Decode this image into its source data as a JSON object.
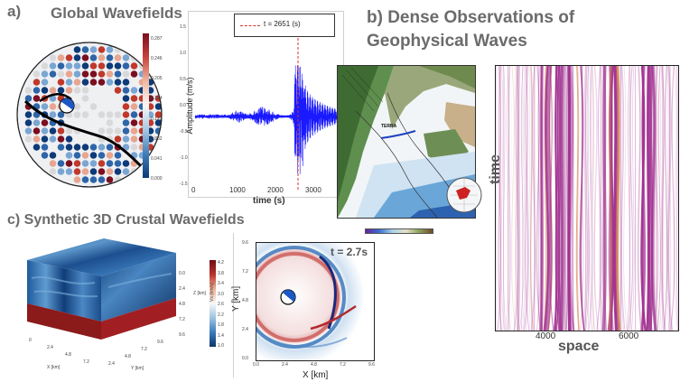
{
  "panels": {
    "a": {
      "label": "a)",
      "title": "Global Wavefields",
      "colorbar_ticks": [
        "0.000",
        "0.041",
        "0.082",
        "0.123",
        "0.164",
        "0.205",
        "0.246",
        "0.287"
      ],
      "legend_text": "t = 2651 (s)",
      "ylabel": "Amplitude (m/s)",
      "xlabel": "time (s)",
      "xticks": [
        "0",
        "1000",
        "2000",
        "3000"
      ],
      "yticks": [
        "1.5",
        "1.0",
        "0.5",
        "0.0",
        "-0.5",
        "-1.0",
        "-1.5"
      ]
    },
    "b": {
      "title_line1": "b) Dense Observations of",
      "title_line2": "Geophysical Waves",
      "map_label": "TERRA",
      "time_label": "time",
      "space_label": "space",
      "xticks": [
        "4000",
        "6000"
      ]
    },
    "c": {
      "title": "c) Synthetic 3D Crustal Wavefields",
      "cube_axes": {
        "z_label": "Z [km]",
        "x_label": "X [km]",
        "y_label": "Y [km]",
        "z_ticks": [
          "0.0",
          "2.4",
          "4.8",
          "7.2",
          "9.6"
        ],
        "x_ticks": [
          "0",
          "2.4",
          "4.8",
          "7.2"
        ],
        "y_ticks": [
          "2.4",
          "4.8",
          "7.2",
          "9.6"
        ]
      },
      "colorbar_label": "Vs (km/s)",
      "colorbar_ticks": [
        "4.2",
        "3.8",
        "3.4",
        "3.0",
        "2.6",
        "2.2",
        "1.8",
        "1.4",
        "1.0"
      ],
      "snapshot_time": "t = 2.7s",
      "snapshot_xlabel": "X [km]",
      "snapshot_ylabel": "Y [km]",
      "snapshot_xticks": [
        "0.0",
        "2.4",
        "4.8",
        "7.2",
        "9.6"
      ],
      "snapshot_yticks": [
        "9.6",
        "7.2",
        "4.8",
        "2.4",
        "0.0"
      ]
    }
  },
  "colors": {
    "heading_gray": "#6b6b6b",
    "wave_blue": "#1a1aff",
    "legend_red": "#e03030",
    "das_purple": "#a0308f",
    "velocity_dark": "#0f3d7a",
    "velocity_red": "#8b1a1a"
  },
  "icons": [
    "beachball-icon",
    "globe-icon"
  ]
}
